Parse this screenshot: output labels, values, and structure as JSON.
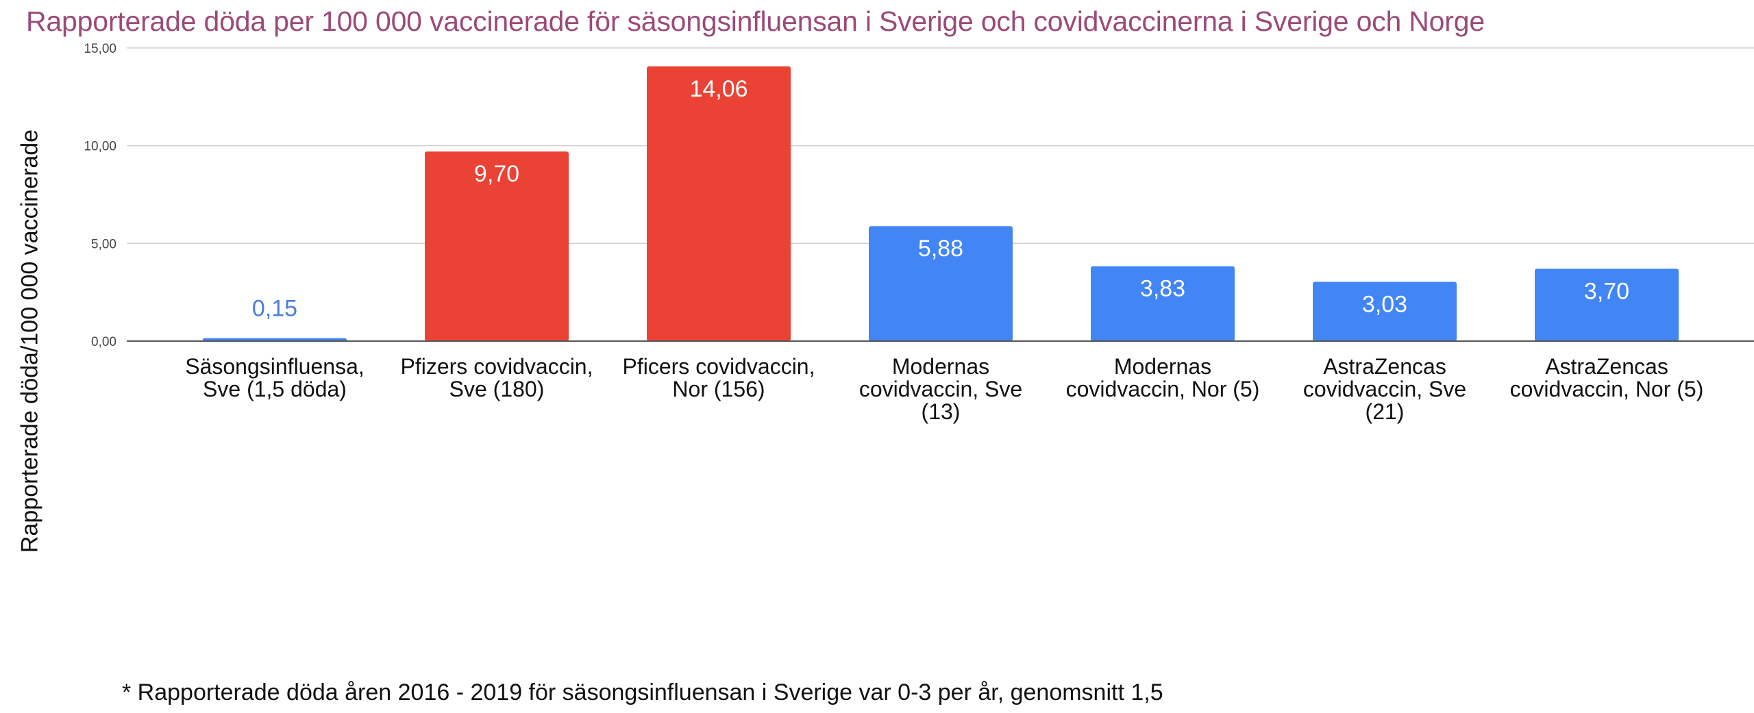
{
  "chart_data": {
    "type": "bar",
    "title": "Rapporterade döda per 100 000 vaccinerade för säsongsinfluensan i Sverige och covidvaccinerna i Sverige och Norge",
    "xlabel": "",
    "ylabel": "Rapporterade döda/100 000 vaccinerade",
    "ylim": [
      0,
      15
    ],
    "yticks": [
      0,
      5,
      10,
      15
    ],
    "ytick_labels": [
      "0,00",
      "5,00",
      "10,00",
      "15,00"
    ],
    "grid": true,
    "categories": [
      [
        "Säsongsinfluensa,",
        "Sve (1,5 döda)"
      ],
      [
        "Pfizers covidvaccin,",
        "Sve (180)"
      ],
      [
        "Pficers covidvaccin,",
        "Nor (156)"
      ],
      [
        "Modernas",
        "covidvaccin, Sve",
        "(13)"
      ],
      [
        "Modernas",
        "covidvaccin, Nor (5)"
      ],
      [
        "AstraZencas",
        "covidvaccin, Sve",
        "(21)"
      ],
      [
        "AstraZencas",
        "covidvaccin, Nor (5)"
      ]
    ],
    "values": [
      0.15,
      9.7,
      14.06,
      5.88,
      3.83,
      3.03,
      3.7
    ],
    "value_labels": [
      "0,15",
      "9,70",
      "14,06",
      "5,88",
      "3,83",
      "3,03",
      "3,70"
    ],
    "colors": [
      "#4285f4",
      "#ea4335",
      "#ea4335",
      "#4285f4",
      "#4285f4",
      "#4285f4",
      "#4285f4"
    ],
    "label_outside_color": "#4a7fd6",
    "label_inside_color": "#ffffff",
    "footnote": "* Rapporterade döda åren 2016 - 2019 för säsongsinfluensan i Sverige var 0-3 per år, genomsnitt 1,5"
  }
}
